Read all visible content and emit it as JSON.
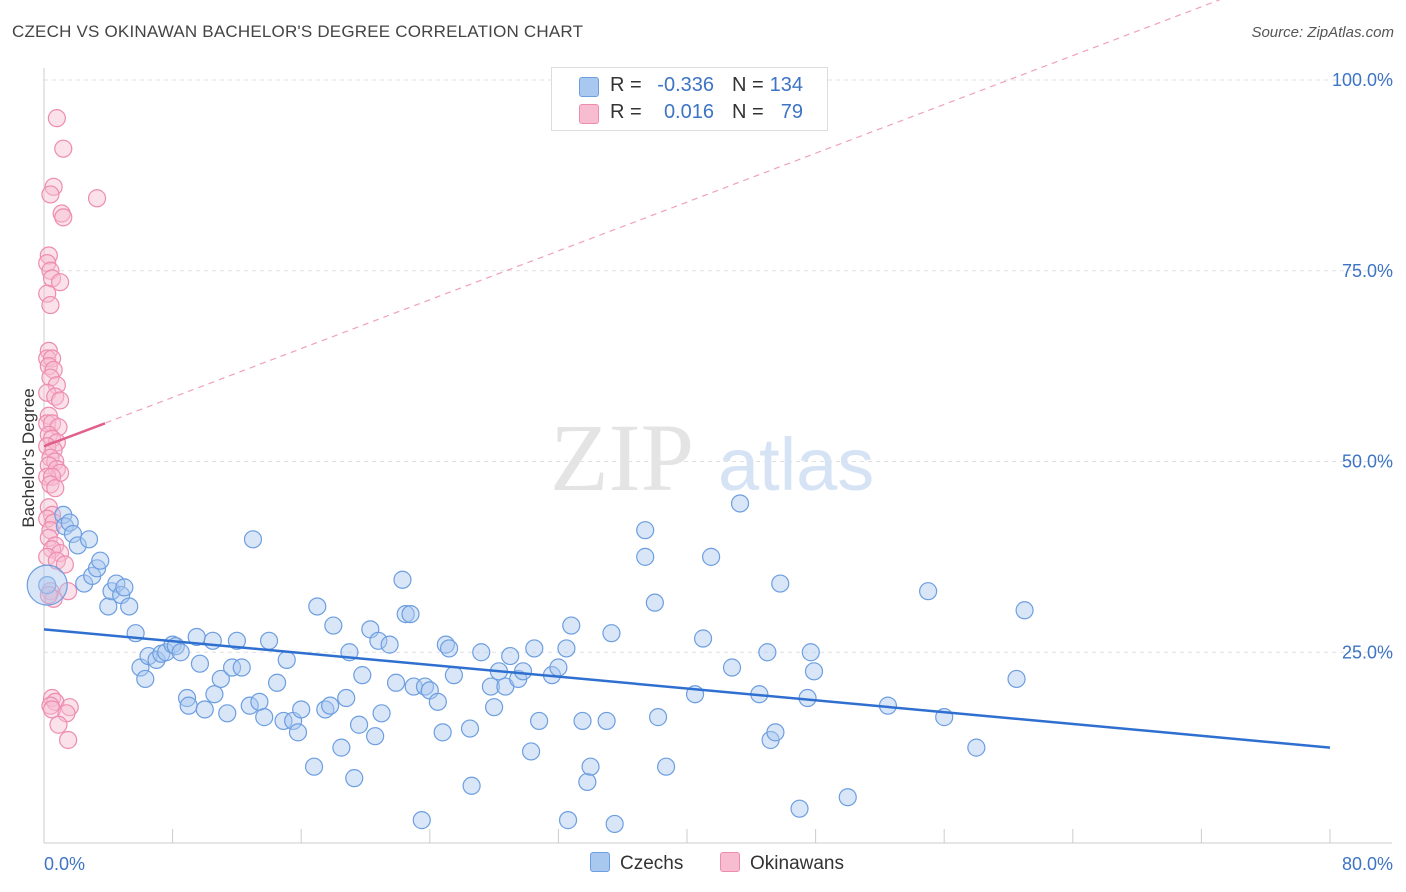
{
  "title": "CZECH VS OKINAWAN BACHELOR'S DEGREE CORRELATION CHART",
  "source": "Source: ZipAtlas.com",
  "watermark": {
    "zip": "ZIP",
    "atlas": "atlas"
  },
  "legend": {
    "r_label": "R =",
    "n_label": "N =",
    "rows": [
      {
        "r": "-0.336",
        "n": "134",
        "color": "#a9c8ef",
        "border": "#6d9ee0"
      },
      {
        "r": "0.016",
        "n": "79",
        "color": "#f7bcd0",
        "border": "#ee8cb0"
      }
    ]
  },
  "bottom_legend": [
    {
      "label": "Czechs",
      "color": "#a9c8ef",
      "border": "#6d9ee0"
    },
    {
      "label": "Okinawans",
      "color": "#f7bcd0",
      "border": "#ee8cb0"
    }
  ],
  "chart_data": {
    "type": "scatter",
    "title": "CZECH VS OKINAWAN BACHELOR'S DEGREE CORRELATION CHART",
    "ylabel": "Bachelor's Degree",
    "xlim": [
      0,
      80
    ],
    "ylim": [
      0,
      100
    ],
    "x_tick_labels": [
      {
        "value": 0,
        "label": "0.0%"
      },
      {
        "value": 80,
        "label": "80.0%"
      }
    ],
    "y_tick_labels": [
      {
        "value": 25,
        "label": "25.0%"
      },
      {
        "value": 50,
        "label": "50.0%"
      },
      {
        "value": 75,
        "label": "75.0%"
      },
      {
        "value": 100,
        "label": "100.0%"
      }
    ],
    "grid": true,
    "series": [
      {
        "name": "Czechs",
        "color": "#6d9ee0",
        "fill": "#a9c8ef",
        "trend": {
          "x": [
            0,
            80
          ],
          "y": [
            28,
            12.5
          ],
          "color": "#2f6fd0"
        },
        "points": [
          [
            0.2,
            33.8
          ],
          [
            1.2,
            43
          ],
          [
            1.3,
            41.5
          ],
          [
            1.6,
            42
          ],
          [
            1.8,
            40.5
          ],
          [
            2.1,
            39
          ],
          [
            2.5,
            34
          ],
          [
            2.8,
            39.8
          ],
          [
            3,
            35
          ],
          [
            3.3,
            36
          ],
          [
            3.5,
            37
          ],
          [
            4,
            31
          ],
          [
            4.2,
            33
          ],
          [
            4.5,
            34
          ],
          [
            4.8,
            32.5
          ],
          [
            5,
            33.5
          ],
          [
            5.3,
            31
          ],
          [
            5.7,
            27.5
          ],
          [
            6,
            23
          ],
          [
            6.3,
            21.5
          ],
          [
            6.5,
            24.5
          ],
          [
            7,
            24
          ],
          [
            7.3,
            24.8
          ],
          [
            7.6,
            25
          ],
          [
            8,
            26
          ],
          [
            8.2,
            25.8
          ],
          [
            8.5,
            25
          ],
          [
            8.9,
            19
          ],
          [
            9,
            18
          ],
          [
            9.5,
            27
          ],
          [
            9.7,
            23.5
          ],
          [
            10,
            17.5
          ],
          [
            10.5,
            26.5
          ],
          [
            10.6,
            19.5
          ],
          [
            11,
            21.5
          ],
          [
            11.4,
            17
          ],
          [
            11.7,
            23
          ],
          [
            12,
            26.5
          ],
          [
            12.3,
            23
          ],
          [
            12.8,
            18
          ],
          [
            13,
            39.8
          ],
          [
            13.4,
            18.5
          ],
          [
            13.7,
            16.5
          ],
          [
            14,
            26.5
          ],
          [
            14.5,
            21
          ],
          [
            14.9,
            16
          ],
          [
            15.1,
            24
          ],
          [
            15.5,
            16
          ],
          [
            15.8,
            14.5
          ],
          [
            16,
            17.5
          ],
          [
            16.8,
            10
          ],
          [
            17,
            31
          ],
          [
            17.5,
            17.5
          ],
          [
            17.8,
            18
          ],
          [
            18,
            28.5
          ],
          [
            18.5,
            12.5
          ],
          [
            18.8,
            19
          ],
          [
            19,
            25
          ],
          [
            19.3,
            8.5
          ],
          [
            19.6,
            15.5
          ],
          [
            19.8,
            22
          ],
          [
            20.3,
            28
          ],
          [
            20.6,
            14
          ],
          [
            20.8,
            26.5
          ],
          [
            21,
            17
          ],
          [
            21.5,
            26
          ],
          [
            21.9,
            21
          ],
          [
            22.3,
            34.5
          ],
          [
            22.5,
            30
          ],
          [
            22.8,
            30
          ],
          [
            23,
            20.5
          ],
          [
            23.5,
            3
          ],
          [
            23.7,
            20.5
          ],
          [
            24,
            20
          ],
          [
            24.5,
            18.5
          ],
          [
            24.8,
            14.5
          ],
          [
            25,
            26
          ],
          [
            25.2,
            25.5
          ],
          [
            25.5,
            22
          ],
          [
            26.5,
            15
          ],
          [
            26.6,
            7.5
          ],
          [
            27.2,
            25
          ],
          [
            27.8,
            20.5
          ],
          [
            28,
            17.8
          ],
          [
            28.3,
            22.5
          ],
          [
            28.7,
            20.5
          ],
          [
            29,
            24.5
          ],
          [
            29.5,
            21.5
          ],
          [
            29.8,
            22.5
          ],
          [
            30.3,
            12
          ],
          [
            30.5,
            25.5
          ],
          [
            30.8,
            16
          ],
          [
            31.6,
            22
          ],
          [
            32,
            23
          ],
          [
            32.5,
            25.5
          ],
          [
            32.8,
            28.5
          ],
          [
            32.6,
            3
          ],
          [
            33.5,
            16
          ],
          [
            33.8,
            8
          ],
          [
            34,
            10
          ],
          [
            35,
            16
          ],
          [
            35.3,
            27.5
          ],
          [
            35.5,
            2.5
          ],
          [
            37.4,
            41
          ],
          [
            37.4,
            37.5
          ],
          [
            38,
            31.5
          ],
          [
            38.2,
            16.5
          ],
          [
            38.7,
            10
          ],
          [
            40.5,
            19.5
          ],
          [
            41,
            26.8
          ],
          [
            41.5,
            37.5
          ],
          [
            42.8,
            23
          ],
          [
            43.3,
            44.5
          ],
          [
            44.5,
            19.5
          ],
          [
            45,
            25
          ],
          [
            45.2,
            13.5
          ],
          [
            45.5,
            14.5
          ],
          [
            45.8,
            34
          ],
          [
            47,
            4.5
          ],
          [
            47.5,
            19
          ],
          [
            47.7,
            25
          ],
          [
            47.9,
            22.5
          ],
          [
            50,
            6
          ],
          [
            52.5,
            18
          ],
          [
            55,
            33
          ],
          [
            56,
            16.5
          ],
          [
            58,
            12.5
          ],
          [
            60.5,
            21.5
          ],
          [
            61,
            30.5
          ]
        ]
      },
      {
        "name": "Okinawans",
        "color": "#ee8cb0",
        "fill": "#f7bcd0",
        "trend": {
          "x": [
            0,
            3.8
          ],
          "y": [
            52,
            55
          ],
          "color": "#e0608a"
        },
        "trend_extended": {
          "x": [
            0,
            80
          ],
          "y": [
            52,
            116
          ],
          "color": "#f0a0bc"
        },
        "points": [
          [
            0.8,
            95
          ],
          [
            1.2,
            91
          ],
          [
            0.6,
            86
          ],
          [
            0.4,
            85
          ],
          [
            3.3,
            84.5
          ],
          [
            1.1,
            82.5
          ],
          [
            1.2,
            82
          ],
          [
            0.3,
            77
          ],
          [
            0.2,
            76
          ],
          [
            0.4,
            75
          ],
          [
            0.5,
            74
          ],
          [
            1,
            73.5
          ],
          [
            0.2,
            72
          ],
          [
            0.4,
            70.5
          ],
          [
            0.3,
            64.5
          ],
          [
            0.2,
            63.5
          ],
          [
            0.5,
            63.5
          ],
          [
            0.3,
            62.5
          ],
          [
            0.6,
            62
          ],
          [
            0.4,
            61
          ],
          [
            0.8,
            60
          ],
          [
            0.2,
            59
          ],
          [
            0.7,
            58.5
          ],
          [
            1,
            58
          ],
          [
            0.3,
            56
          ],
          [
            0.2,
            55
          ],
          [
            0.5,
            55
          ],
          [
            0.9,
            54.5
          ],
          [
            0.3,
            53.5
          ],
          [
            0.5,
            53
          ],
          [
            0.8,
            52.5
          ],
          [
            0.2,
            52
          ],
          [
            0.6,
            51.5
          ],
          [
            0.4,
            50.5
          ],
          [
            0.7,
            50
          ],
          [
            0.3,
            49.5
          ],
          [
            0.8,
            49
          ],
          [
            1,
            48.5
          ],
          [
            0.2,
            48
          ],
          [
            0.5,
            48
          ],
          [
            0.4,
            47
          ],
          [
            0.7,
            46.5
          ],
          [
            0.3,
            44
          ],
          [
            0.5,
            43
          ],
          [
            0.2,
            42.5
          ],
          [
            0.6,
            42
          ],
          [
            0.4,
            41
          ],
          [
            0.3,
            40
          ],
          [
            0.7,
            39
          ],
          [
            0.5,
            38.5
          ],
          [
            1,
            38
          ],
          [
            0.2,
            37.5
          ],
          [
            0.8,
            37
          ],
          [
            1.3,
            36.5
          ],
          [
            0.4,
            33
          ],
          [
            1.5,
            33
          ],
          [
            0.6,
            32
          ],
          [
            0.3,
            32.5
          ],
          [
            0.5,
            19
          ],
          [
            0.7,
            18.5
          ],
          [
            0.4,
            18
          ],
          [
            1.6,
            17.8
          ],
          [
            0.5,
            17.5
          ],
          [
            1.4,
            17
          ],
          [
            0.9,
            15.5
          ],
          [
            1.5,
            13.5
          ]
        ]
      }
    ]
  }
}
